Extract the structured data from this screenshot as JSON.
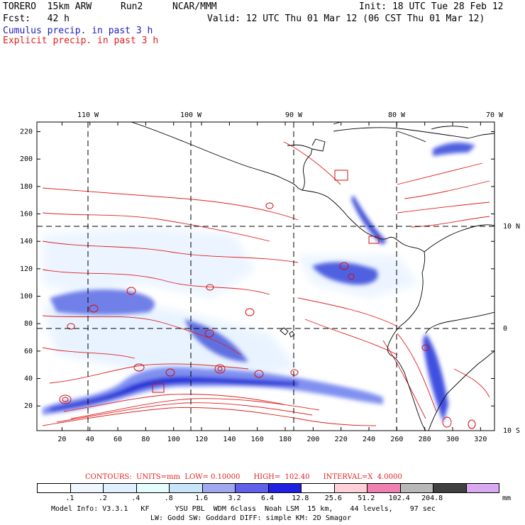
{
  "header": {
    "model": "TORERO  15km ARW",
    "run": "Run2",
    "org": "NCAR/MMM",
    "init": "Init: 18 UTC Tue 28 Feb 12",
    "fcst": "Fcst:   42 h",
    "valid": "Valid: 12 UTC Thu 01 Mar 12 (06 CST Thu 01 Mar 12)",
    "line1": "Cumulus precip. in past 3 h",
    "line2": "Explicit precip. in past 3 h"
  },
  "map": {
    "lon_labels": [
      "110 W",
      "100 W",
      "90 W",
      "80 W",
      "70 W"
    ],
    "lat_labels": [
      "10 N",
      "0",
      "10 S"
    ],
    "x_ticks": [
      "20",
      "40",
      "60",
      "80",
      "100",
      "120",
      "140",
      "160",
      "180",
      "200",
      "220",
      "240",
      "260",
      "280",
      "300",
      "320"
    ],
    "y_ticks": [
      "20",
      "40",
      "60",
      "80",
      "100",
      "120",
      "140",
      "160",
      "180",
      "200",
      "220"
    ]
  },
  "contours": {
    "units": "CONTOURS:  UNITS=mm  LOW= 0.10000      HIGH=  102.40      INTERVAL=X  4.0000"
  },
  "legend": {
    "colors": [
      "#ffffff",
      "#f0f6ff",
      "#e0f0ff",
      "#e4fcfc",
      "#c8e4f8",
      "#a0a8f0",
      "#6060e8",
      "#2020e0",
      "#ffffff",
      "#ffd0d8",
      "#f080b0",
      "#b8b8b8",
      "#404040",
      "#d8a8f0"
    ],
    "labels": [
      ".1",
      ".2",
      ".4",
      ".8",
      "1.6",
      "3.2",
      "6.4",
      "12.8",
      "25.6",
      "51.2",
      "102.4",
      "204.8"
    ],
    "units": "mm"
  },
  "model_info": {
    "line1": "Model Info: V3.3.1   KF      YSU PBL  WDM 6class  Noah LSM  15 km,    44 levels,    97 sec",
    "line2": "LW: Godd SW: Goddard DIFF: simple KM: 2D Smagor"
  }
}
